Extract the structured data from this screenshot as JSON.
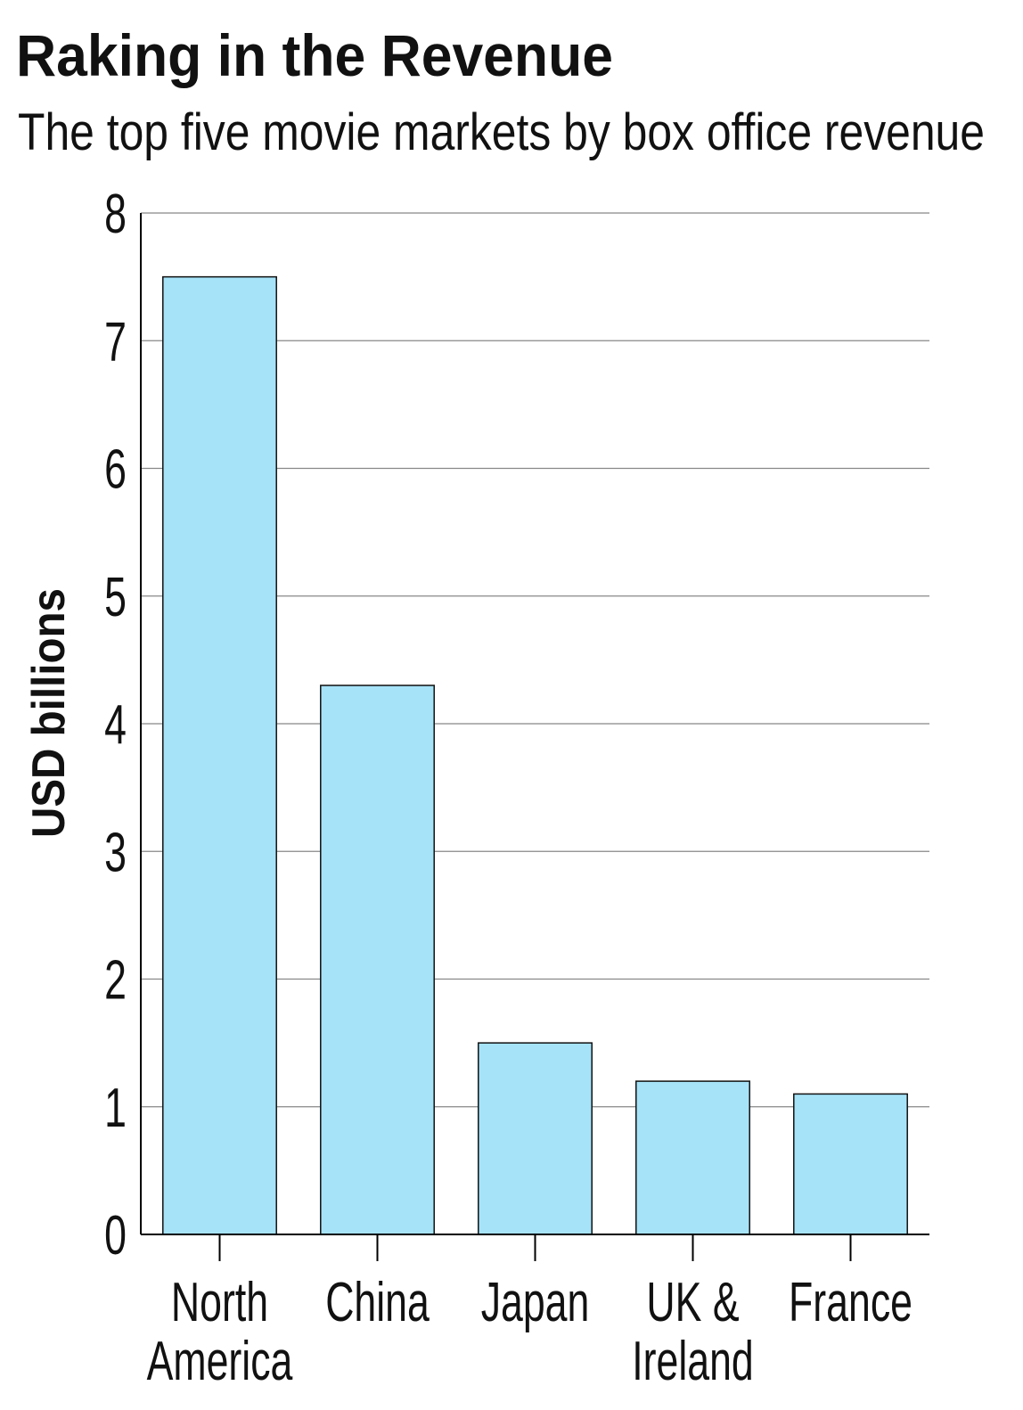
{
  "chart_data": {
    "type": "bar",
    "title": "Raking in the Revenue",
    "subtitle": "The top five movie markets by box office revenue",
    "y_label": "USD billions",
    "categories": [
      [
        "North",
        "America"
      ],
      [
        "China"
      ],
      [
        "Japan"
      ],
      [
        "UK &",
        "Ireland"
      ],
      [
        "France"
      ]
    ],
    "values": [
      7.5,
      4.3,
      1.5,
      1.2,
      1.1
    ],
    "color": "#a6e3f9",
    "ylim": [
      0,
      8
    ],
    "yticks": [
      0,
      1,
      2,
      3,
      4,
      5,
      6,
      7,
      8
    ],
    "grid": true
  }
}
